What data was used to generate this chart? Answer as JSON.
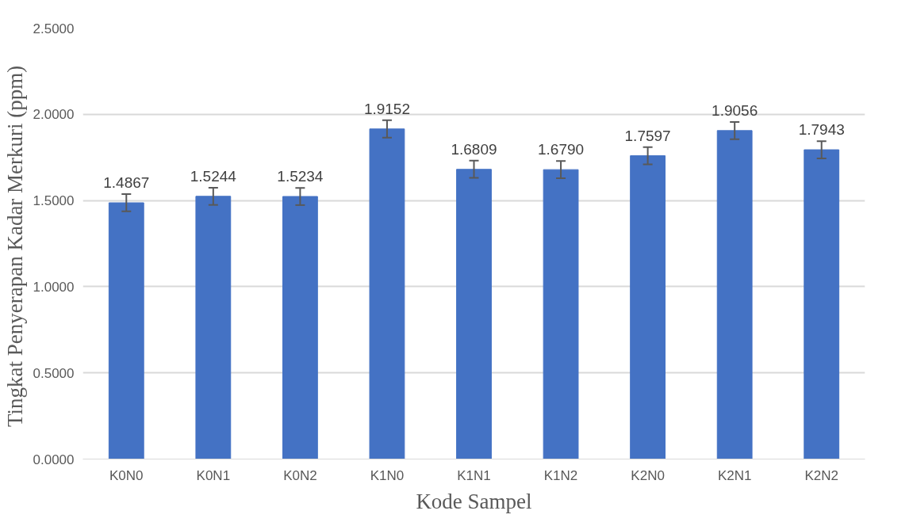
{
  "chart_data": {
    "type": "bar",
    "xlabel": "Kode Sampel",
    "ylabel": "Tingkat  Penyerapan Kadar Merkuri (ppm)",
    "categories": [
      "K0N0",
      "K0N1",
      "K0N2",
      "K1N0",
      "K1N1",
      "K1N2",
      "K2N0",
      "K2N1",
      "K2N2"
    ],
    "values": [
      1.4867,
      1.5244,
      1.5234,
      1.9152,
      1.6809,
      1.679,
      1.7597,
      1.9056,
      1.7943
    ],
    "errors": [
      0.05,
      0.05,
      0.05,
      0.05,
      0.05,
      0.05,
      0.05,
      0.05,
      0.05
    ],
    "value_labels": [
      "1.4867",
      "1.5244",
      "1.5234",
      "1.9152",
      "1.6809",
      "1.6790",
      "1.7597",
      "1.9056",
      "1.7943"
    ],
    "color": "#4472c4",
    "grid": "y",
    "ylim": [
      0,
      2.5
    ],
    "yticks": [
      {
        "value": 0,
        "label": "0.0000"
      },
      {
        "value": 0.5,
        "label": "0.5000"
      },
      {
        "value": 1,
        "label": "1.0000"
      },
      {
        "value": 1.5,
        "label": "1.5000"
      },
      {
        "value": 2,
        "label": "2.0000"
      },
      {
        "value": 2.5,
        "label": "2.5000"
      }
    ]
  }
}
